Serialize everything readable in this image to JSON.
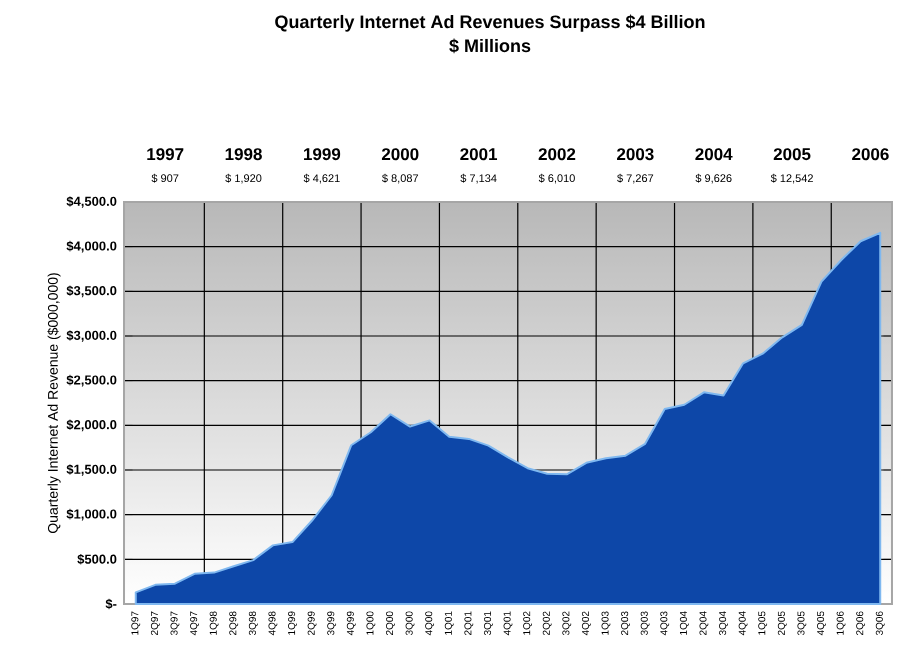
{
  "chart_data": {
    "type": "area",
    "title": "Quarterly Internet Ad Revenues Surpass $4 Billion",
    "subtitle": "$ Millions",
    "ylabel": "Quarterly Internet Ad Revenue ($000,000)",
    "categories": [
      "1Q97",
      "2Q97",
      "3Q97",
      "4Q97",
      "1Q98",
      "2Q98",
      "3Q98",
      "4Q98",
      "1Q99",
      "2Q99",
      "3Q99",
      "4Q99",
      "1Q00",
      "2Q00",
      "3Q00",
      "4Q00",
      "1Q01",
      "2Q01",
      "3Q01",
      "4Q01",
      "1Q02",
      "2Q02",
      "3Q02",
      "4Q02",
      "1Q03",
      "2Q03",
      "3Q03",
      "4Q03",
      "1Q04",
      "2Q04",
      "3Q04",
      "4Q04",
      "1Q05",
      "2Q05",
      "3Q05",
      "4Q05",
      "1Q06",
      "2Q06",
      "3Q06"
    ],
    "values": [
      130,
      214,
      227,
      337,
      351,
      423,
      491,
      656,
      693,
      934,
      1217,
      1777,
      1922,
      2124,
      1986,
      2055,
      1872,
      1848,
      1773,
      1641,
      1520,
      1458,
      1451,
      1580,
      1632,
      1660,
      1793,
      2182,
      2230,
      2369,
      2333,
      2694,
      2802,
      2985,
      3125,
      3608,
      3848,
      4061,
      4154
    ],
    "color": "#0d47a8",
    "ylim": [
      0,
      4500
    ],
    "yticks": [
      {
        "value": 0,
        "label": "$-"
      },
      {
        "value": 500,
        "label": "$500.0"
      },
      {
        "value": 1000,
        "label": "$1,000.0"
      },
      {
        "value": 1500,
        "label": "$1,500.0"
      },
      {
        "value": 2000,
        "label": "$2,000.0"
      },
      {
        "value": 2500,
        "label": "$2,500.0"
      },
      {
        "value": 3000,
        "label": "$3,000.0"
      },
      {
        "value": 3500,
        "label": "$3,500.0"
      },
      {
        "value": 4000,
        "label": "$4,000.0"
      },
      {
        "value": 4500,
        "label": "$4,500.0"
      }
    ],
    "grid": true,
    "annotations": [
      "1997",
      "$ 907",
      "1998",
      "$ 1,920",
      "1999",
      "$ 4,621",
      "2000",
      "$ 8,087",
      "2001",
      "$ 7,134",
      "2002",
      "$ 6,010",
      "2003",
      "$ 7,267",
      "2004",
      "$ 9,626",
      "2005",
      "$ 12,542",
      "2006"
    ]
  }
}
